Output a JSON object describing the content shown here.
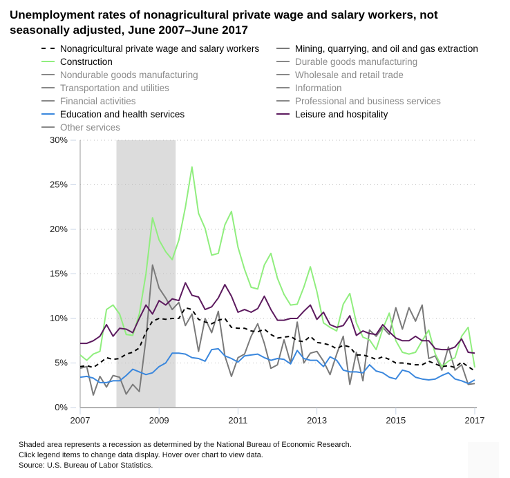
{
  "title": "Unemployment rates of nonagricultural private wage and salary workers, not seasonally adjusted, June 2007–June 2017",
  "legend": [
    {
      "label": "Nonagricultural private wage and salary workers",
      "color": "#000000",
      "dashed": true,
      "visible": true
    },
    {
      "label": "Mining, quarrying, and oil and gas extraction",
      "color": "#7a7a7a",
      "visible": true
    },
    {
      "label": "Construction",
      "color": "#90ee7e",
      "visible": true
    },
    {
      "label": "Durable goods manufacturing",
      "color": "#888888",
      "visible": false
    },
    {
      "label": "Nondurable goods manufacturing",
      "color": "#888888",
      "visible": false
    },
    {
      "label": "Wholesale and retail trade",
      "color": "#888888",
      "visible": false
    },
    {
      "label": "Transportation and utilities",
      "color": "#888888",
      "visible": false
    },
    {
      "label": "Information",
      "color": "#888888",
      "visible": false
    },
    {
      "label": "Financial activities",
      "color": "#888888",
      "visible": false
    },
    {
      "label": "Professional and business services",
      "color": "#888888",
      "visible": false
    },
    {
      "label": "Education and health services",
      "color": "#3a87dd",
      "visible": true
    },
    {
      "label": "Leisure and hospitality",
      "color": "#5c1a5e",
      "visible": true
    },
    {
      "label": "Other services",
      "color": "#888888",
      "visible": false
    }
  ],
  "chart_data": {
    "type": "line",
    "xlim": [
      2007,
      2017
    ],
    "ylim": [
      0,
      30
    ],
    "x_ticks": [
      "2007",
      "2009",
      "2011",
      "2013",
      "2015",
      "2017"
    ],
    "y_ticks": [
      "0%",
      "5%",
      "10%",
      "15%",
      "20%",
      "25%",
      "30%"
    ],
    "grid": "horizontal dotted",
    "recession": {
      "start": 2007.92,
      "end": 2009.42,
      "color": "#dcdcdc"
    },
    "series": [
      {
        "name": "Mining, quarrying, and oil and gas extraction",
        "color": "#7a7a7a",
        "values": [
          4.4,
          4.6,
          1.4,
          3.5,
          2.3,
          3.6,
          3.4,
          1.5,
          2.6,
          1.8,
          7.7,
          16.0,
          13.4,
          12.3,
          11.0,
          11.8,
          9.2,
          10.5,
          6.3,
          10.0,
          8.4,
          10.8,
          5.8,
          3.5,
          5.6,
          6.0,
          8.0,
          9.4,
          7.2,
          4.4,
          4.8,
          7.6,
          5.0,
          9.6,
          5.0,
          6.1,
          6.3,
          5.2,
          3.7,
          6.0,
          8.0,
          2.6,
          6.2,
          3.0,
          8.7,
          8.0,
          9.0,
          8.2,
          11.2,
          8.8,
          11.2,
          9.7,
          11.5,
          5.5,
          5.8,
          4.2,
          6.8,
          4.2,
          4.8,
          2.6,
          2.7
        ]
      },
      {
        "name": "Construction",
        "color": "#90ee7e",
        "values": [
          5.9,
          5.3,
          6.0,
          6.3,
          11.0,
          11.5,
          10.5,
          8.2,
          8.1,
          10.5,
          15.0,
          21.3,
          18.8,
          17.5,
          16.6,
          18.8,
          22.5,
          27.0,
          21.8,
          20.1,
          17.1,
          17.3,
          20.5,
          22.0,
          18.0,
          15.5,
          13.5,
          13.3,
          16.0,
          17.3,
          14.5,
          12.7,
          11.5,
          11.6,
          13.5,
          15.8,
          13.0,
          9.5,
          9.0,
          8.6,
          11.6,
          12.8,
          9.5,
          7.9,
          7.6,
          6.5,
          8.8,
          10.6,
          7.5,
          6.2,
          6.0,
          6.2,
          7.5,
          8.7,
          6.0,
          4.6,
          5.2,
          5.6,
          8.0,
          9.0,
          4.5
        ]
      },
      {
        "name": "Education and health services",
        "color": "#3a87dd",
        "values": [
          3.4,
          3.5,
          3.3,
          2.8,
          2.8,
          3.0,
          3.0,
          3.6,
          4.3,
          4.0,
          3.7,
          3.9,
          4.6,
          5.0,
          6.1,
          6.1,
          6.0,
          5.6,
          5.5,
          5.2,
          6.5,
          6.6,
          5.8,
          5.5,
          5.1,
          5.8,
          5.9,
          6.0,
          5.6,
          5.3,
          5.5,
          5.4,
          4.9,
          6.4,
          5.5,
          5.3,
          5.3,
          4.6,
          5.7,
          5.3,
          4.2,
          4.0,
          4.0,
          3.9,
          4.8,
          4.1,
          3.9,
          3.4,
          3.2,
          4.2,
          4.0,
          3.4,
          3.2,
          3.1,
          3.2,
          3.6,
          3.9,
          3.2,
          3.0,
          2.7,
          3.1
        ]
      },
      {
        "name": "Leisure and hospitality",
        "color": "#5c1a5e",
        "values": [
          7.2,
          7.2,
          7.5,
          8.0,
          9.3,
          8.0,
          8.9,
          8.8,
          8.4,
          10.0,
          11.5,
          10.5,
          12.0,
          11.5,
          12.2,
          12.0,
          14.0,
          12.6,
          12.4,
          11.0,
          11.3,
          12.3,
          13.8,
          12.5,
          10.7,
          11.0,
          10.7,
          11.1,
          12.5,
          11.0,
          9.8,
          9.8,
          10.0,
          10.0,
          10.8,
          11.5,
          9.9,
          10.7,
          9.3,
          9.0,
          9.2,
          10.3,
          8.1,
          8.6,
          8.3,
          8.2,
          9.3,
          8.5,
          7.8,
          7.5,
          7.5,
          8.0,
          7.5,
          7.5,
          6.6,
          6.5,
          6.5,
          6.8,
          7.7,
          6.2,
          6.1
        ]
      },
      {
        "name": "Nonagricultural private wage and salary workers",
        "color": "#000000",
        "dashed": true,
        "values": [
          4.6,
          4.7,
          4.5,
          5.0,
          5.6,
          5.4,
          5.5,
          6.0,
          6.2,
          6.7,
          8.5,
          9.7,
          10.0,
          9.9,
          10.0,
          10.0,
          11.2,
          11.0,
          9.9,
          9.6,
          9.4,
          9.8,
          10.0,
          9.0,
          8.9,
          8.9,
          8.6,
          8.5,
          8.8,
          8.2,
          7.8,
          7.9,
          8.0,
          7.5,
          7.4,
          8.0,
          7.3,
          7.2,
          7.0,
          6.6,
          7.0,
          6.8,
          5.9,
          5.9,
          5.7,
          5.4,
          5.7,
          5.4,
          5.0,
          5.0,
          4.9,
          4.8,
          4.8,
          5.2,
          4.9,
          4.6,
          4.7,
          4.5,
          5.1,
          4.6,
          4.1
        ]
      }
    ]
  },
  "notes": [
    "Shaded area represents a recession as determined by the National Bureau of Economic Research.",
    "Click legend items to change data display. Hover over chart to view data.",
    "Source: U.S. Bureau of Labor Statistics."
  ]
}
